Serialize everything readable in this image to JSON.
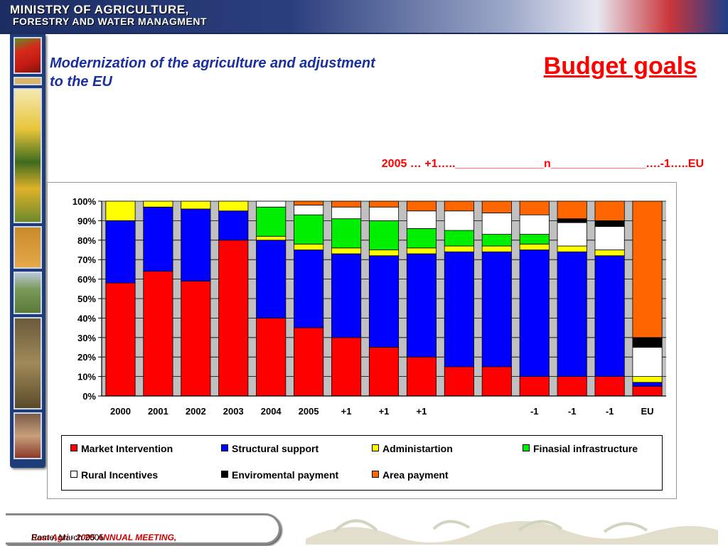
{
  "header": {
    "line1": "MINISTRY OF AGRICULTURE,",
    "line2": "FORESTRY AND WATER MANAGMENT"
  },
  "subtitle": "Modernization of the agriculture and adjustment to the EU",
  "page_title": "Budget goals",
  "timeline_text": "2005 … +1…..______________n_______________….-1…..EU",
  "footer": {
    "event": "East Agri - 2005 ANNUAL MEETING,",
    "place": " Rome, March 2005"
  },
  "colors": {
    "market": "#ff0000",
    "structural": "#0000ff",
    "admin": "#ffff00",
    "infra": "#00ee00",
    "rural": "#ffffff",
    "enviro": "#000000",
    "area": "#ff6600",
    "plot_bg": "#c0c0c0",
    "header_blue": "#1c2d63",
    "subtitle_blue": "#1a2fa0"
  },
  "chart_data": {
    "type": "bar",
    "stacked": true,
    "categories": [
      "2000",
      "2001",
      "2002",
      "2003",
      "2004",
      "2005",
      "+1",
      "+1",
      "+1",
      "",
      "",
      "-1",
      "-1",
      "-1",
      "EU"
    ],
    "yticks": [
      "0%",
      "10%",
      "20%",
      "30%",
      "40%",
      "50%",
      "60%",
      "70%",
      "80%",
      "90%",
      "100%"
    ],
    "ylim": [
      0,
      100
    ],
    "grid": true,
    "legend_position": "bottom",
    "series": [
      {
        "key": "market",
        "name": "Market Intervention",
        "values": [
          58,
          64,
          59,
          80,
          40,
          35,
          30,
          25,
          20,
          15,
          15,
          10,
          10,
          10,
          5
        ]
      },
      {
        "key": "structural",
        "name": "Structural support",
        "values": [
          32,
          33,
          37,
          15,
          40,
          40,
          43,
          47,
          53,
          59,
          59,
          65,
          64,
          62,
          2
        ]
      },
      {
        "key": "admin",
        "name": "Administartion",
        "values": [
          10,
          3,
          4,
          5,
          2,
          3,
          3,
          3,
          3,
          3,
          3,
          3,
          3,
          3,
          3
        ]
      },
      {
        "key": "infra",
        "name": "Finasial infrastructure",
        "values": [
          0,
          0,
          0,
          0,
          15,
          15,
          15,
          15,
          10,
          8,
          6,
          5,
          0,
          0,
          0
        ]
      },
      {
        "key": "rural",
        "name": "Rural Incentives",
        "values": [
          0,
          0,
          0,
          0,
          3,
          5,
          6,
          7,
          9,
          10,
          11,
          10,
          12,
          12,
          15
        ]
      },
      {
        "key": "enviro",
        "name": "Enviromental payment",
        "values": [
          0,
          0,
          0,
          0,
          0,
          0,
          0,
          0,
          0,
          0,
          0,
          0,
          2,
          3,
          5
        ]
      },
      {
        "key": "area",
        "name": "Area payment",
        "values": [
          0,
          0,
          0,
          0,
          0,
          2,
          3,
          3,
          5,
          5,
          6,
          7,
          9,
          10,
          70
        ]
      }
    ]
  }
}
